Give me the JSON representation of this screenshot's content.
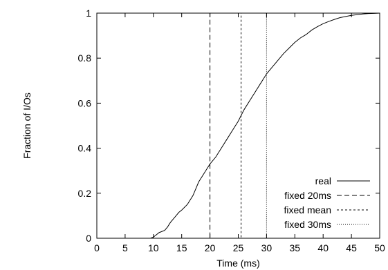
{
  "chart_data": {
    "type": "line",
    "title": "",
    "xlabel": "Time (ms)",
    "ylabel": "Fraction of I/Os",
    "xlim": [
      0,
      50
    ],
    "ylim": [
      0,
      1
    ],
    "x_ticks": [
      "0",
      "5",
      "10",
      "15",
      "20",
      "25",
      "30",
      "35",
      "40",
      "45",
      "50"
    ],
    "y_ticks": [
      "0",
      "0.2",
      "0.4",
      "0.6",
      "0.8",
      "1"
    ],
    "grid": false,
    "legend_position": "bottom-right",
    "series": [
      {
        "name": "real",
        "dash": "solid",
        "x": [
          0,
          9.5,
          10,
          10.5,
          11,
          12,
          12.5,
          13,
          14,
          14.5,
          15,
          16,
          17,
          17.5,
          18,
          19,
          20,
          21,
          22,
          23,
          24,
          25,
          26,
          27,
          28,
          29,
          30,
          31,
          32,
          33,
          34,
          35,
          36,
          37,
          38,
          39,
          40,
          41,
          42,
          43,
          44,
          45,
          46,
          47,
          48,
          49,
          50
        ],
        "y": [
          0,
          0,
          0.005,
          0.015,
          0.025,
          0.035,
          0.05,
          0.07,
          0.1,
          0.115,
          0.125,
          0.15,
          0.19,
          0.22,
          0.25,
          0.29,
          0.33,
          0.36,
          0.4,
          0.44,
          0.48,
          0.52,
          0.57,
          0.61,
          0.65,
          0.69,
          0.73,
          0.76,
          0.79,
          0.82,
          0.845,
          0.87,
          0.89,
          0.905,
          0.925,
          0.94,
          0.953,
          0.963,
          0.972,
          0.98,
          0.985,
          0.99,
          0.993,
          0.996,
          0.998,
          0.999,
          1.0
        ]
      },
      {
        "name": "fixed 20ms",
        "dash": "dashed",
        "x": [
          0,
          20,
          20,
          50
        ],
        "y": [
          0,
          0,
          1,
          1
        ]
      },
      {
        "name": "fixed mean",
        "dash": "short-dash",
        "x": [
          0,
          25.5,
          25.5,
          50
        ],
        "y": [
          0,
          0,
          1,
          1
        ]
      },
      {
        "name": "fixed 30ms",
        "dash": "dotted",
        "x": [
          0,
          30,
          30,
          50
        ],
        "y": [
          0,
          0,
          1,
          1
        ]
      }
    ]
  }
}
